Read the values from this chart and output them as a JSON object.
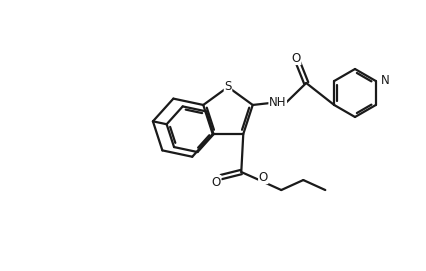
{
  "bg_color": "#ffffff",
  "line_color": "#1a1a1a",
  "line_width": 1.6,
  "figsize": [
    4.26,
    2.71
  ],
  "dpi": 100,
  "S_label": "S",
  "NH_label": "NH",
  "N_label": "N",
  "O_label": "O"
}
